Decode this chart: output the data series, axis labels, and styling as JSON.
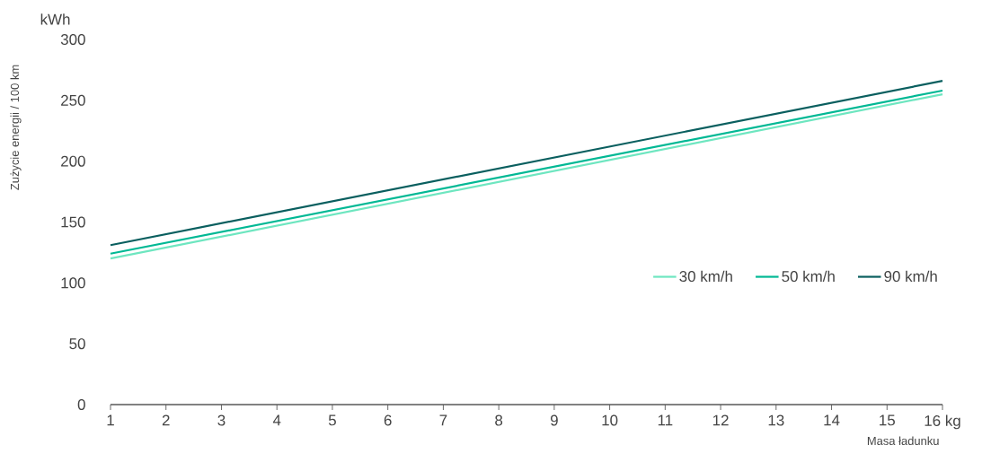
{
  "chart_data": {
    "type": "line",
    "xlabel": "Masa ładunku",
    "ylabel": "Zużycie energii / 100 km",
    "annotations": [
      "kWh"
    ],
    "x": [
      1,
      16
    ],
    "series": [
      {
        "name": "30 km/h",
        "color": "#6ee6c0",
        "values": [
          120,
          255
        ]
      },
      {
        "name": "50 km/h",
        "color": "#00b894",
        "values": [
          124,
          258
        ]
      },
      {
        "name": "90 km/h",
        "color": "#0a5f5f",
        "values": [
          131,
          266
        ]
      }
    ],
    "xlim": [
      1,
      16
    ],
    "ylim": [
      0,
      300
    ],
    "xticks": [
      1,
      2,
      3,
      4,
      5,
      6,
      7,
      8,
      9,
      10,
      11,
      12,
      13,
      14,
      15,
      {
        "value": 16,
        "label": "16 kg"
      }
    ],
    "yticks": [
      0,
      50,
      100,
      150,
      200,
      250,
      300
    ],
    "grid": false,
    "legend": "right",
    "marker": "none",
    "line_style": "solid"
  }
}
